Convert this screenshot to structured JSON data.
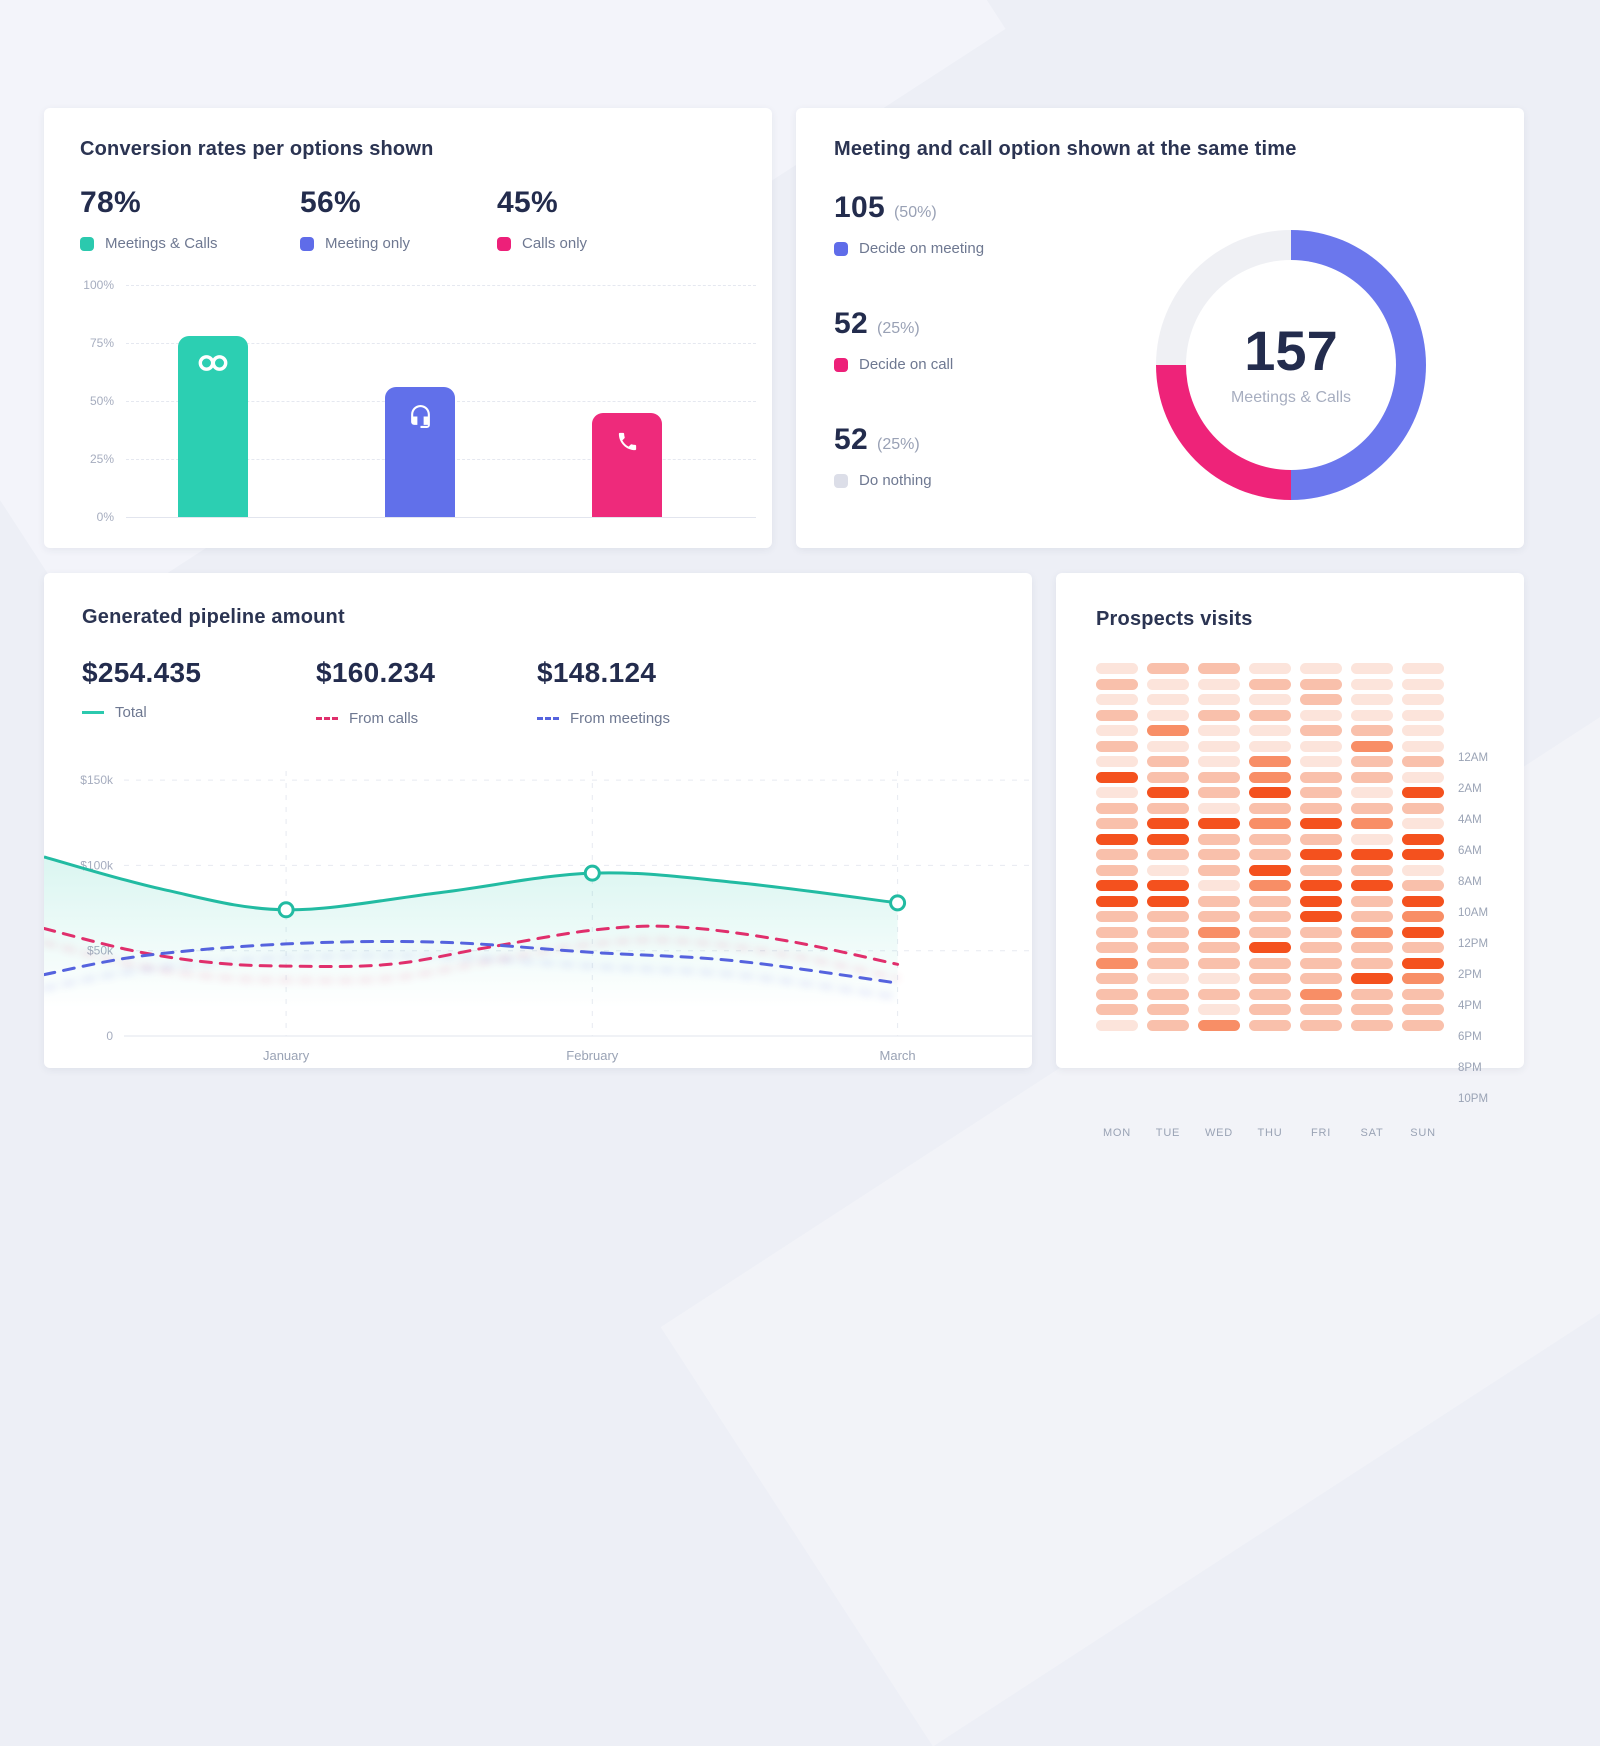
{
  "chart_data": [
    {
      "type": "bar",
      "title": "Conversion rates per options shown",
      "categories": [
        "Meetings & Calls",
        "Meeting only",
        "Calls only"
      ],
      "values": [
        78,
        56,
        45
      ],
      "ylim": [
        0,
        100
      ],
      "grid": "dashed-horizontal",
      "bar_colors": [
        "#2CCFB2",
        "#6170EA",
        "#EE2A7B"
      ],
      "stats": [
        {
          "value": "78%",
          "label": "Meetings & Calls",
          "color": "#2BC9AE",
          "icon": "infinity-icon"
        },
        {
          "value": "56%",
          "label": "Meeting only",
          "color": "#5F6CE9",
          "icon": "headset-icon"
        },
        {
          "value": "45%",
          "label": "Calls only",
          "color": "#ED2079",
          "icon": "phone-icon"
        }
      ],
      "y_ticks": [
        {
          "label": "100%",
          "v": 100
        },
        {
          "label": "75%",
          "v": 75
        },
        {
          "label": "50%",
          "v": 50
        },
        {
          "label": "25%",
          "v": 25
        },
        {
          "label": "0%",
          "v": 0
        }
      ]
    },
    {
      "type": "pie",
      "title": "Meeting and call option shown at the same time",
      "center_value": "157",
      "center_label": "Meetings & Calls",
      "segments": [
        {
          "value": "105",
          "pct": "(50%)",
          "label": "Decide on meeting",
          "share": 50,
          "color": "#6B77ED",
          "swatch": "#5F6CE9"
        },
        {
          "value": "52",
          "pct": "(25%)",
          "label": "Decide on call",
          "share": 25,
          "color": "#EE2379",
          "swatch": "#ED2079"
        },
        {
          "value": "52",
          "pct": "(25%)",
          "label": "Do nothing",
          "share": 25,
          "color": "#EFF0F4",
          "swatch": "#DCDEE8"
        }
      ]
    },
    {
      "type": "line",
      "title": "Generated pipeline amount",
      "stats": [
        {
          "value": "$254.435",
          "label": "Total",
          "color": "#2BC9AE",
          "style": "solid"
        },
        {
          "value": "$160.234",
          "label": "From calls",
          "color": "#E02F6C",
          "style": "dashed"
        },
        {
          "value": "$148.124",
          "label": "From meetings",
          "color": "#5563DE",
          "style": "dashed"
        }
      ],
      "x_labels": [
        "January",
        "February",
        "March"
      ],
      "x_positions": [
        0.245,
        0.555,
        0.864
      ],
      "ylim": [
        0,
        160
      ],
      "y_unit": "$k",
      "y_ticks": [
        {
          "label": "$150k",
          "v": 150
        },
        {
          "label": "$100k",
          "v": 100
        },
        {
          "label": "$50k",
          "v": 50
        },
        {
          "label": "0",
          "v": 0
        }
      ],
      "series": [
        {
          "name": "Total",
          "color": "#22BBA2",
          "style": "solid",
          "marker_idx": [
            2,
            4,
            6
          ],
          "points": [
            [
              0,
              105
            ],
            [
              0.12,
              86
            ],
            [
              0.245,
              74
            ],
            [
              0.4,
              84
            ],
            [
              0.555,
              95.5
            ],
            [
              0.7,
              90
            ],
            [
              0.864,
              78
            ]
          ]
        },
        {
          "name": "From calls",
          "color": "#E02F6C",
          "style": "dashed",
          "points": [
            [
              0,
              63
            ],
            [
              0.09,
              50
            ],
            [
              0.17,
              43
            ],
            [
              0.245,
              41
            ],
            [
              0.35,
              42
            ],
            [
              0.45,
              52
            ],
            [
              0.555,
              62
            ],
            [
              0.64,
              64
            ],
            [
              0.75,
              56
            ],
            [
              0.864,
              42
            ]
          ]
        },
        {
          "name": "From meetings",
          "color": "#5563DE",
          "style": "dashed",
          "points": [
            [
              0,
              36
            ],
            [
              0.1,
              47
            ],
            [
              0.245,
              54
            ],
            [
              0.4,
              55
            ],
            [
              0.555,
              49
            ],
            [
              0.7,
              44
            ],
            [
              0.864,
              31
            ]
          ]
        }
      ]
    },
    {
      "type": "heatmap",
      "title": "Prospects visits",
      "days": [
        "MON",
        "TUE",
        "WED",
        "THU",
        "FRI",
        "SAT",
        "SUN"
      ],
      "times": [
        "12AM",
        "2AM",
        "4AM",
        "6AM",
        "8AM",
        "10AM",
        "12PM",
        "2PM",
        "4PM",
        "6PM",
        "8PM",
        "10PM"
      ],
      "palette": [
        "#FCE4DB",
        "#F9C0AB",
        "#F88E66",
        "#F4511E"
      ],
      "grid": [
        [
          0,
          1,
          1,
          0,
          0,
          0,
          0
        ],
        [
          1,
          0,
          0,
          1,
          1,
          0,
          0
        ],
        [
          0,
          0,
          0,
          0,
          1,
          0,
          0
        ],
        [
          1,
          0,
          1,
          1,
          0,
          0,
          0
        ],
        [
          0,
          2,
          0,
          0,
          1,
          1,
          0
        ],
        [
          1,
          0,
          0,
          0,
          0,
          2,
          0
        ],
        [
          0,
          1,
          0,
          2,
          0,
          1,
          1
        ],
        [
          3,
          1,
          1,
          2,
          1,
          1,
          0
        ],
        [
          0,
          3,
          1,
          3,
          1,
          0,
          3
        ],
        [
          1,
          1,
          0,
          1,
          1,
          1,
          1
        ],
        [
          1,
          3,
          3,
          2,
          3,
          2,
          0
        ],
        [
          3,
          3,
          1,
          1,
          1,
          0,
          3
        ],
        [
          1,
          1,
          1,
          1,
          3,
          3,
          3
        ],
        [
          1,
          0,
          1,
          3,
          1,
          1,
          0
        ],
        [
          3,
          3,
          0,
          2,
          3,
          3,
          1
        ],
        [
          3,
          3,
          1,
          1,
          3,
          1,
          3
        ],
        [
          1,
          1,
          1,
          1,
          3,
          1,
          2
        ],
        [
          1,
          1,
          2,
          1,
          1,
          2,
          3
        ],
        [
          1,
          1,
          1,
          3,
          1,
          1,
          1
        ],
        [
          2,
          1,
          1,
          1,
          1,
          1,
          3
        ],
        [
          1,
          0,
          0,
          1,
          1,
          3,
          2
        ],
        [
          1,
          1,
          1,
          1,
          2,
          1,
          1
        ],
        [
          1,
          1,
          0,
          1,
          1,
          1,
          1
        ],
        [
          0,
          1,
          2,
          1,
          1,
          1,
          1
        ]
      ]
    }
  ]
}
